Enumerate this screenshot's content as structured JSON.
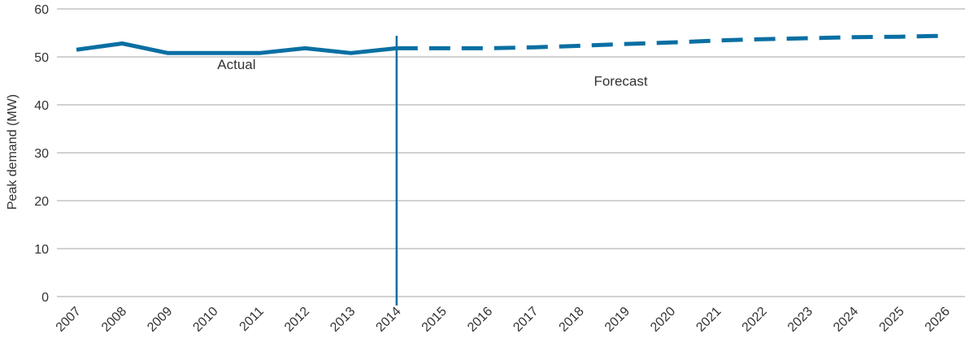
{
  "chart_data": {
    "type": "line",
    "title": "",
    "xlabel": "",
    "ylabel": "Peak demand (MW)",
    "ylim": [
      0,
      60
    ],
    "yticks": [
      0,
      10,
      20,
      30,
      40,
      50,
      60
    ],
    "grid": true,
    "x": [
      "2007",
      "2008",
      "2009",
      "2010",
      "2011",
      "2012",
      "2013",
      "2014",
      "2015",
      "2016",
      "2017",
      "2018",
      "2019",
      "2020",
      "2021",
      "2022",
      "2023",
      "2024",
      "2025",
      "2026"
    ],
    "series": [
      {
        "name": "",
        "style": "solid",
        "color": "#0a6fa3",
        "x": [
          "2007",
          "2008",
          "2009",
          "2010",
          "2011",
          "2012",
          "2013",
          "2014"
        ],
        "values": [
          51.5,
          52.8,
          50.8,
          50.8,
          50.8,
          51.8,
          50.8,
          51.8
        ]
      },
      {
        "name": "",
        "style": "dashed",
        "color": "#0a6fa3",
        "x": [
          "2014",
          "2015",
          "2016",
          "2017",
          "2018",
          "2019",
          "2020",
          "2021",
          "2022",
          "2023",
          "2024",
          "2025",
          "2026"
        ],
        "values": [
          51.8,
          51.8,
          51.8,
          52.0,
          52.3,
          52.7,
          53.0,
          53.4,
          53.7,
          53.9,
          54.1,
          54.2,
          54.4
        ]
      }
    ],
    "divider": {
      "x": "2014",
      "color": "#0a6fa3"
    },
    "annotations": [
      {
        "text": "Actual",
        "x": "2010.5",
        "y": 47.5
      },
      {
        "text": "Forecast",
        "x": "2018.9",
        "y": 44
      }
    ]
  }
}
